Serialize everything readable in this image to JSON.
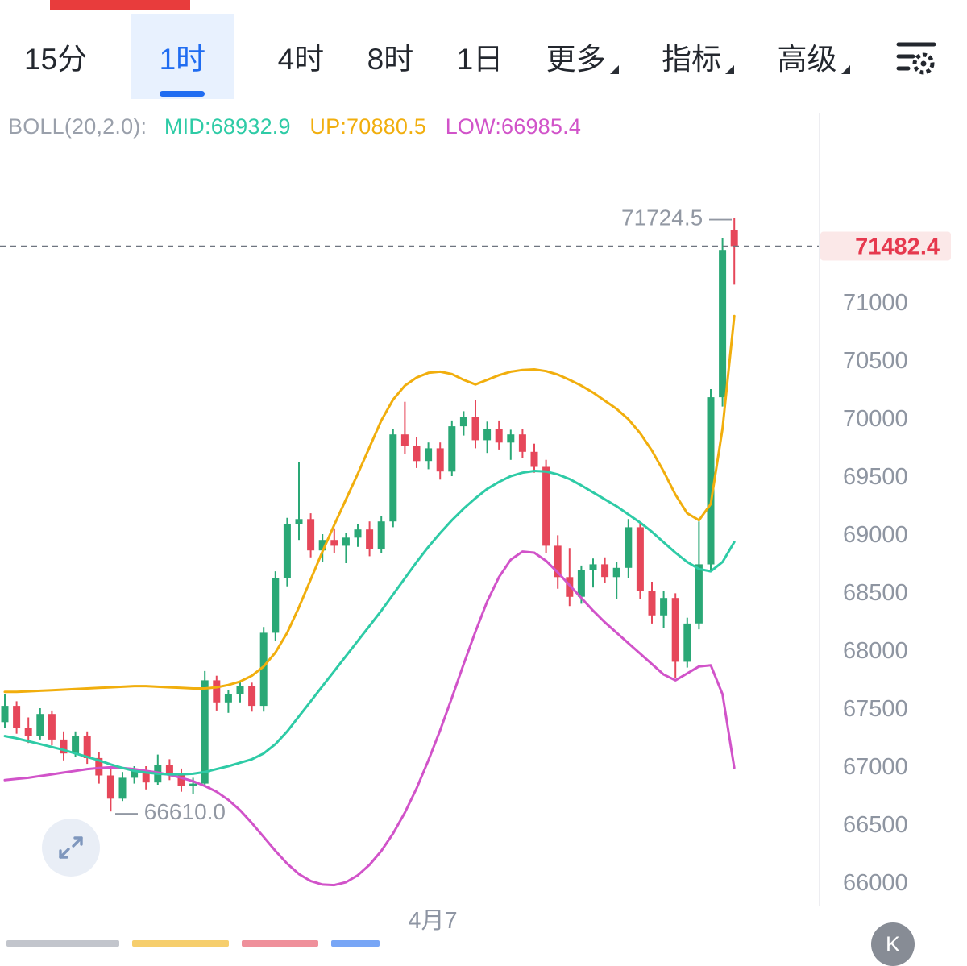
{
  "toolbar": {
    "tabs": [
      {
        "label": "15分",
        "selected": false
      },
      {
        "label": "1时",
        "selected": true
      },
      {
        "label": "4时",
        "selected": false
      },
      {
        "label": "8时",
        "selected": false
      },
      {
        "label": "1日",
        "selected": false
      }
    ],
    "menus": [
      {
        "label": "更多"
      },
      {
        "label": "指标"
      },
      {
        "label": "高级"
      }
    ]
  },
  "indicator_header": {
    "name": "BOLL(20,2.0):",
    "mid": "MID:68932.9",
    "up": "UP:70880.5",
    "low": "LOW:66985.4"
  },
  "k_button": {
    "label": "K"
  },
  "colors": {
    "accent_blue": "#1f6cf1",
    "tab_selected_bg": "#e8f1fe",
    "up_green": "#2aa876",
    "down_red": "#e6475a",
    "boll_mid_teal": "#2ecba6",
    "boll_up_yellow": "#f1ae0d",
    "boll_low_magenta": "#d153c9",
    "last_price_red": "#e6394e",
    "last_price_bg": "#fbe8e8",
    "axis_text_gray": "#8e95a1"
  },
  "chart_data": {
    "type": "candlestick",
    "title": "BOLL(20,2.0)",
    "x_axis_label": "4月7",
    "grid": false,
    "legend_position": "none",
    "ylim": [
      65830,
      72630
    ],
    "y_ticks": [
      71000,
      70500,
      70000,
      69500,
      69000,
      68500,
      68000,
      67500,
      67000,
      66500,
      66000
    ],
    "up_color": "#2aa876",
    "down_color": "#e6475a",
    "candles_ohlc": [
      [
        67380,
        67620,
        67330,
        67520
      ],
      [
        67520,
        67560,
        67280,
        67330
      ],
      [
        67330,
        67420,
        67200,
        67260
      ],
      [
        67260,
        67500,
        67230,
        67450
      ],
      [
        67450,
        67480,
        67180,
        67230
      ],
      [
        67230,
        67300,
        67050,
        67110
      ],
      [
        67110,
        67300,
        67080,
        67260
      ],
      [
        67260,
        67300,
        67020,
        67070
      ],
      [
        67070,
        67120,
        66850,
        66920
      ],
      [
        66920,
        66980,
        66610,
        66720
      ],
      [
        66720,
        66950,
        66700,
        66900
      ],
      [
        66900,
        67000,
        66850,
        66960
      ],
      [
        66960,
        67000,
        66800,
        66860
      ],
      [
        66860,
        67100,
        66840,
        67010
      ],
      [
        67010,
        67060,
        66880,
        66930
      ],
      [
        66930,
        66980,
        66780,
        66830
      ],
      [
        66830,
        66900,
        66760,
        66850
      ],
      [
        66850,
        67820,
        66840,
        67740
      ],
      [
        67740,
        67780,
        67480,
        67550
      ],
      [
        67550,
        67660,
        67460,
        67620
      ],
      [
        67620,
        67730,
        67550,
        67690
      ],
      [
        67690,
        67720,
        67470,
        67520
      ],
      [
        67520,
        68200,
        67470,
        68150
      ],
      [
        68150,
        68680,
        68080,
        68620
      ],
      [
        68620,
        69140,
        68550,
        69090
      ],
      [
        69090,
        69620,
        68950,
        69130
      ],
      [
        69130,
        69180,
        68800,
        68860
      ],
      [
        68860,
        69000,
        68760,
        68950
      ],
      [
        68950,
        69050,
        68840,
        68900
      ],
      [
        68900,
        69010,
        68750,
        68970
      ],
      [
        68970,
        69090,
        68890,
        69040
      ],
      [
        69040,
        69110,
        68810,
        68870
      ],
      [
        68870,
        69160,
        68840,
        69110
      ],
      [
        69110,
        69910,
        69060,
        69860
      ],
      [
        69860,
        70140,
        69690,
        69760
      ],
      [
        69760,
        69840,
        69570,
        69630
      ],
      [
        69630,
        69790,
        69560,
        69740
      ],
      [
        69740,
        69790,
        69470,
        69540
      ],
      [
        69540,
        69980,
        69500,
        69930
      ],
      [
        69930,
        70060,
        69850,
        70010
      ],
      [
        70010,
        70160,
        69740,
        69810
      ],
      [
        69810,
        69970,
        69700,
        69910
      ],
      [
        69910,
        69980,
        69730,
        69790
      ],
      [
        69790,
        69900,
        69640,
        69860
      ],
      [
        69860,
        69910,
        69660,
        69710
      ],
      [
        69710,
        69780,
        69530,
        69580
      ],
      [
        69580,
        69640,
        68840,
        68900
      ],
      [
        68900,
        68990,
        68530,
        68630
      ],
      [
        68630,
        68880,
        68380,
        68460
      ],
      [
        68460,
        68730,
        68400,
        68690
      ],
      [
        68690,
        68790,
        68540,
        68740
      ],
      [
        68740,
        68800,
        68580,
        68630
      ],
      [
        68630,
        68760,
        68440,
        68710
      ],
      [
        68710,
        69130,
        68620,
        69060
      ],
      [
        69060,
        69110,
        68440,
        68510
      ],
      [
        68510,
        68590,
        68230,
        68300
      ],
      [
        68300,
        68510,
        68190,
        68450
      ],
      [
        68450,
        68490,
        67760,
        67900
      ],
      [
        67900,
        68280,
        67850,
        68230
      ],
      [
        68230,
        69110,
        68180,
        68740
      ],
      [
        68740,
        70250,
        68680,
        70180
      ],
      [
        70180,
        71550,
        70100,
        71450
      ],
      [
        71620,
        71724.5,
        71150,
        71482.4
      ]
    ],
    "series": [
      {
        "name": "LOW",
        "color": "#d153c9",
        "values": [
          66880,
          66890,
          66900,
          66915,
          66930,
          66945,
          66960,
          66975,
          66985,
          66990,
          66985,
          66975,
          66960,
          66945,
          66925,
          66900,
          66870,
          66830,
          66780,
          66710,
          66620,
          66510,
          66390,
          66270,
          66160,
          66070,
          66010,
          65980,
          65975,
          66000,
          66060,
          66150,
          66270,
          66420,
          66600,
          66810,
          67050,
          67310,
          67590,
          67880,
          68160,
          68420,
          68630,
          68780,
          68850,
          68840,
          68770,
          68670,
          68560,
          68450,
          68340,
          68240,
          68150,
          68060,
          67970,
          67880,
          67790,
          67740,
          67800,
          67860,
          67870,
          67620,
          66985.4
        ]
      },
      {
        "name": "MID",
        "color": "#2ecba6",
        "values": [
          67260,
          67240,
          67215,
          67190,
          67165,
          67140,
          67110,
          67080,
          67050,
          67015,
          66985,
          66960,
          66945,
          66935,
          66930,
          66930,
          66935,
          66950,
          66975,
          67000,
          67030,
          67060,
          67110,
          67190,
          67300,
          67430,
          67560,
          67690,
          67820,
          67950,
          68080,
          68210,
          68340,
          68480,
          68620,
          68760,
          68890,
          69010,
          69120,
          69220,
          69310,
          69390,
          69450,
          69500,
          69530,
          69545,
          69540,
          69515,
          69475,
          69420,
          69360,
          69300,
          69240,
          69170,
          69100,
          69020,
          68930,
          68840,
          68760,
          68700,
          68680,
          68760,
          68932.9
        ]
      },
      {
        "name": "UP",
        "color": "#f1ae0d",
        "values": [
          67640,
          67640,
          67645,
          67650,
          67655,
          67660,
          67665,
          67670,
          67675,
          67680,
          67685,
          67690,
          67690,
          67685,
          67680,
          67675,
          67670,
          67670,
          67680,
          67700,
          67730,
          67780,
          67860,
          67980,
          68150,
          68370,
          68610,
          68850,
          69080,
          69300,
          69520,
          69750,
          69980,
          70160,
          70280,
          70350,
          70390,
          70400,
          70380,
          70330,
          70290,
          70330,
          70370,
          70400,
          70415,
          70420,
          70405,
          70375,
          70330,
          70280,
          70220,
          70150,
          70080,
          69990,
          69870,
          69720,
          69540,
          69340,
          69180,
          69120,
          69260,
          69910,
          70880.5
        ]
      }
    ],
    "annotations": {
      "high_label": "71724.5",
      "high_value": 71724.5,
      "low_label": "66610.0",
      "low_value": 66610.0,
      "last_price": "71482.4",
      "last_price_value": 71482.4
    }
  }
}
